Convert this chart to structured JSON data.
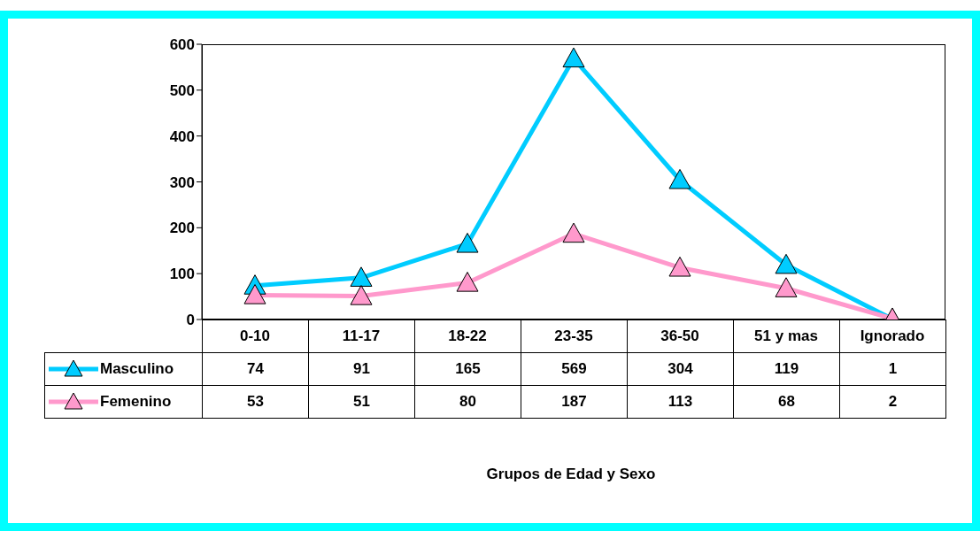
{
  "chart_data": {
    "type": "line",
    "annotations": [
      "Grupos de Edad y Sexo"
    ],
    "categories": [
      "0-10",
      "11-17",
      "18-22",
      "23-35",
      "36-50",
      "51 y mas",
      "Ignorado"
    ],
    "series": [
      {
        "name": "Masculino",
        "color": "#00ccff",
        "values": [
          74,
          91,
          165,
          569,
          304,
          119,
          1
        ]
      },
      {
        "name": "Femenino",
        "color": "#ff99cc",
        "values": [
          53,
          51,
          80,
          187,
          113,
          68,
          2
        ]
      }
    ],
    "ylim": [
      0,
      600
    ],
    "yticks": [
      0,
      100,
      200,
      300,
      400,
      500,
      600
    ],
    "grid": false,
    "legend": "bottom left",
    "marker": "triangle",
    "line_style": "solid",
    "data_labels": true
  }
}
